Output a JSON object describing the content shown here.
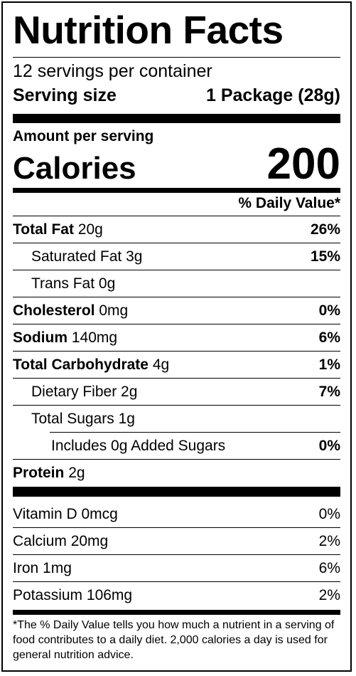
{
  "label": {
    "title": "Nutrition Facts",
    "servings_per_container": "12 servings per container",
    "serving_size_label": "Serving size",
    "serving_size_value": "1 Package (28g)",
    "amount_per_serving": "Amount per serving",
    "calories_label": "Calories",
    "calories_value": "200",
    "daily_value_header": "% Daily Value*"
  },
  "nutrients": [
    {
      "name": "Total Fat",
      "amount": "20g",
      "dv": "26%"
    },
    {
      "name": "Saturated Fat",
      "amount": "3g",
      "dv": "15%"
    },
    {
      "name": "Trans Fat",
      "amount": "0g",
      "dv": ""
    },
    {
      "name": "Cholesterol",
      "amount": "0mg",
      "dv": "0%"
    },
    {
      "name": "Sodium",
      "amount": "140mg",
      "dv": "6%"
    },
    {
      "name": "Total Carbohydrate",
      "amount": "4g",
      "dv": "1%"
    },
    {
      "name": "Dietary Fiber",
      "amount": "2g",
      "dv": "7%"
    },
    {
      "name": "Total Sugars",
      "amount": "1g",
      "dv": ""
    },
    {
      "name": "Includes 0g Added Sugars",
      "amount": "",
      "dv": "0%"
    },
    {
      "name": "Protein",
      "amount": "2g",
      "dv": ""
    }
  ],
  "vitamins": [
    {
      "name": "Vitamin D",
      "amount": "0mcg",
      "dv": "0%"
    },
    {
      "name": "Calcium",
      "amount": "20mg",
      "dv": "2%"
    },
    {
      "name": "Iron",
      "amount": "1mg",
      "dv": "6%"
    },
    {
      "name": "Potassium",
      "amount": "106mg",
      "dv": "2%"
    }
  ],
  "footnote": "*The % Daily Value tells you how much a nutrient in a serving of food contributes to a daily diet. 2,000 calories a day is used for general nutrition advice."
}
